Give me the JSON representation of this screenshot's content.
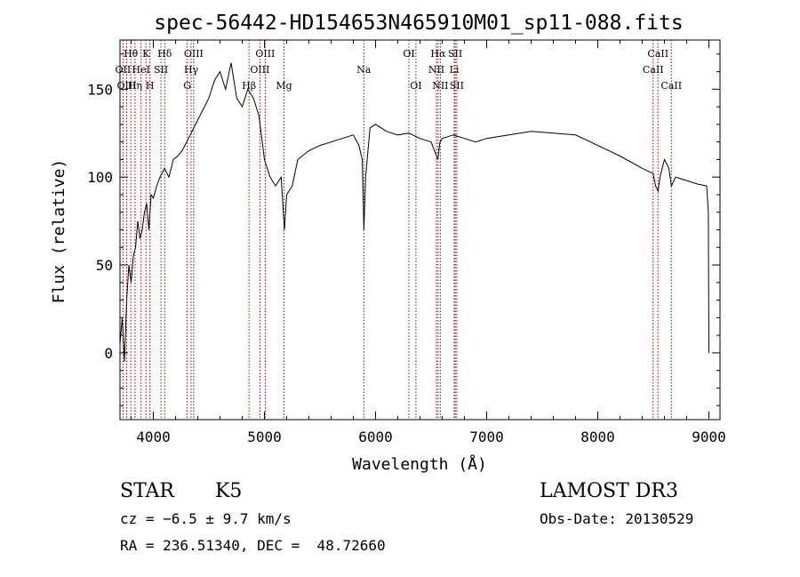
{
  "chart_data": {
    "type": "line",
    "title": "spec-56442-HD154653N465910M01_sp11-088.fits",
    "xlabel": "Wavelength (Å)",
    "ylabel": "Flux (relative)",
    "xlim": [
      3700,
      9100
    ],
    "ylim": [
      -38,
      178
    ],
    "xticks": [
      4000,
      5000,
      6000,
      7000,
      8000,
      9000
    ],
    "yticks": [
      0,
      50,
      100,
      150
    ],
    "grid": false,
    "line_color": "#000000",
    "marker_color": "#990000",
    "series": [
      {
        "x": [
          3700,
          3720,
          3740,
          3760,
          3780,
          3800,
          3820,
          3840,
          3860,
          3880,
          3900,
          3920,
          3940,
          3960,
          3980,
          4000,
          4030,
          4060,
          4100,
          4140,
          4180,
          4220,
          4260,
          4300,
          4340,
          4380,
          4420,
          4460,
          4500,
          4550,
          4600,
          4650,
          4700,
          4750,
          4800,
          4850,
          4900,
          4950,
          5000,
          5050,
          5100,
          5150,
          5180,
          5200,
          5250,
          5300,
          5400,
          5500,
          5600,
          5700,
          5800,
          5850,
          5880,
          5895,
          5910,
          5950,
          6000,
          6100,
          6200,
          6300,
          6400,
          6500,
          6560,
          6580,
          6600,
          6700,
          6800,
          6900,
          7000,
          7200,
          7400,
          7600,
          7800,
          8000,
          8200,
          8400,
          8498,
          8520,
          8542,
          8560,
          8600,
          8640,
          8662,
          8700,
          8800,
          8900,
          8980,
          8995,
          9000
        ],
        "y": [
          5,
          20,
          -5,
          30,
          50,
          40,
          55,
          60,
          75,
          65,
          70,
          80,
          85,
          70,
          90,
          88,
          95,
          100,
          105,
          100,
          110,
          112,
          115,
          120,
          125,
          130,
          135,
          140,
          145,
          155,
          160,
          150,
          165,
          145,
          140,
          150,
          145,
          135,
          110,
          100,
          95,
          100,
          70,
          90,
          95,
          110,
          115,
          118,
          120,
          122,
          124,
          118,
          110,
          70,
          100,
          128,
          130,
          126,
          124,
          125,
          122,
          120,
          110,
          120,
          122,
          124,
          122,
          120,
          122,
          124,
          126,
          125,
          124,
          118,
          112,
          105,
          102,
          95,
          92,
          100,
          110,
          105,
          95,
          100,
          98,
          96,
          95,
          80,
          0
        ]
      }
    ],
    "lines": [
      {
        "label": "Hθ",
        "x": 3797,
        "row": 0
      },
      {
        "label": "OII",
        "x": 3727,
        "row": 1
      },
      {
        "label": "OIII",
        "x": 3760,
        "row": 2
      },
      {
        "label": "Hη",
        "x": 3835,
        "row": 2
      },
      {
        "label": "HeI",
        "x": 3889,
        "row": 1
      },
      {
        "label": "K",
        "x": 3934,
        "row": 0
      },
      {
        "label": "SII",
        "x": 4069,
        "row": 1
      },
      {
        "label": "H",
        "x": 3969,
        "row": 2
      },
      {
        "label": "Hδ",
        "x": 4102,
        "row": 0
      },
      {
        "label": "OIII",
        "x": 4363,
        "row": 0
      },
      {
        "label": "Hγ",
        "x": 4340,
        "row": 1
      },
      {
        "label": "G",
        "x": 4305,
        "row": 2
      },
      {
        "label": "Hβ",
        "x": 4861,
        "row": 2
      },
      {
        "label": "OIII",
        "x": 5007,
        "row": 0
      },
      {
        "label": "OIII",
        "x": 4959,
        "row": 1
      },
      {
        "label": "Mg",
        "x": 5176,
        "row": 2
      },
      {
        "label": "Na",
        "x": 5894,
        "row": 1
      },
      {
        "label": "OI",
        "x": 6300,
        "row": 0
      },
      {
        "label": "OI",
        "x": 6363,
        "row": 2
      },
      {
        "label": "Hα",
        "x": 6563,
        "row": 0
      },
      {
        "label": "NII",
        "x": 6548,
        "row": 1
      },
      {
        "label": "NII",
        "x": 6583,
        "row": 2
      },
      {
        "label": "SII",
        "x": 6717,
        "row": 0
      },
      {
        "label": "Li",
        "x": 6708,
        "row": 1
      },
      {
        "label": "SII",
        "x": 6731,
        "row": 2
      },
      {
        "label": "CaII",
        "x": 8542,
        "row": 0
      },
      {
        "label": "CaII",
        "x": 8498,
        "row": 1
      },
      {
        "label": "CaII",
        "x": 8662,
        "row": 2
      }
    ]
  },
  "info": {
    "class": "STAR",
    "subclass": "K5",
    "survey": "LAMOST DR3",
    "cz": "cz = −6.5 ± 9.7 km/s",
    "obs_date": "Obs-Date: 20130529",
    "radec": "RA = 236.51340, DEC =  48.72660"
  }
}
